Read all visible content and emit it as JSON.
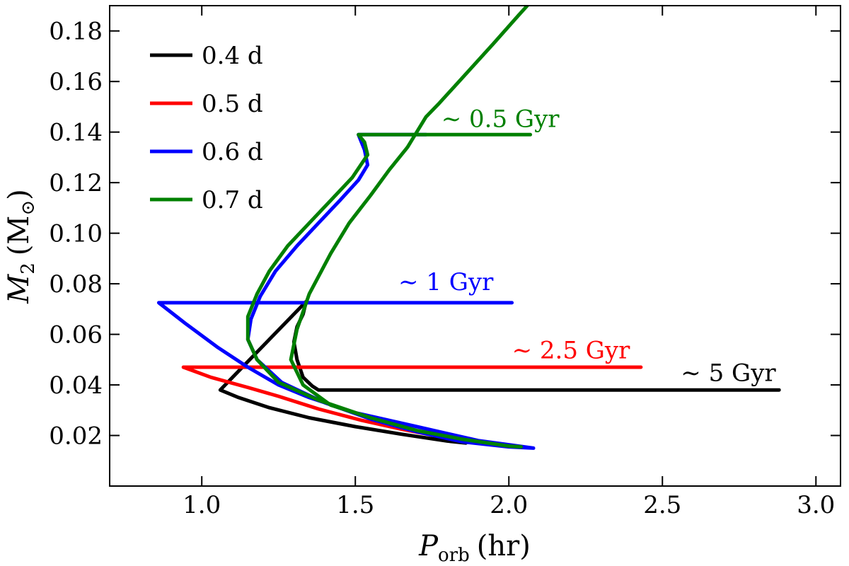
{
  "chart_data": {
    "type": "line",
    "xlabel": {
      "main": "P",
      "sub": "orb",
      "unit": "(hr)"
    },
    "ylabel": {
      "main": "M",
      "sub": "2",
      "unit_open": "(M",
      "unit_sub": "⊙",
      "unit_close": ")"
    },
    "xlim": [
      0.7,
      3.08
    ],
    "ylim": [
      0.0,
      0.19
    ],
    "xticks": [
      1.0,
      1.5,
      2.0,
      2.5,
      3.0
    ],
    "xtick_labels": [
      "1.0",
      "1.5",
      "2.0",
      "2.5",
      "3.0"
    ],
    "yticks": [
      0.02,
      0.04,
      0.06,
      0.08,
      0.1,
      0.12,
      0.14,
      0.16,
      0.18
    ],
    "ytick_labels": [
      "0.02",
      "0.04",
      "0.06",
      "0.08",
      "0.10",
      "0.12",
      "0.14",
      "0.16",
      "0.18"
    ],
    "grid": false,
    "legend_position": "top-left",
    "series": [
      {
        "name": "0.4 d",
        "color": "#000000",
        "points": [
          [
            2.88,
            0.038
          ],
          [
            1.38,
            0.038
          ],
          [
            1.36,
            0.0395
          ],
          [
            1.33,
            0.043
          ],
          [
            1.31,
            0.05
          ],
          [
            1.3,
            0.057
          ],
          [
            1.31,
            0.063
          ],
          [
            1.33,
            0.068
          ],
          [
            1.34,
            0.073
          ],
          [
            1.06,
            0.038
          ],
          [
            1.12,
            0.035
          ],
          [
            1.22,
            0.031
          ],
          [
            1.35,
            0.027
          ],
          [
            1.5,
            0.0235
          ],
          [
            1.65,
            0.0205
          ],
          [
            1.8,
            0.0178
          ],
          [
            1.86,
            0.017
          ]
        ]
      },
      {
        "name": "0.5 d",
        "color": "#ff0000",
        "points": [
          [
            2.43,
            0.047
          ],
          [
            0.94,
            0.047
          ],
          [
            1.03,
            0.043
          ],
          [
            1.15,
            0.039
          ],
          [
            1.25,
            0.0355
          ],
          [
            1.38,
            0.0305
          ],
          [
            1.52,
            0.026
          ],
          [
            1.65,
            0.0225
          ],
          [
            1.8,
            0.019
          ],
          [
            1.86,
            0.0178
          ]
        ]
      },
      {
        "name": "0.6 d",
        "color": "#0000ff",
        "points": [
          [
            2.01,
            0.0725
          ],
          [
            0.86,
            0.0725
          ],
          [
            0.95,
            0.064
          ],
          [
            1.05,
            0.055
          ],
          [
            1.15,
            0.047
          ],
          [
            1.25,
            0.04
          ],
          [
            1.35,
            0.035
          ],
          [
            1.5,
            0.029
          ],
          [
            1.7,
            0.0235
          ],
          [
            1.9,
            0.018
          ],
          [
            2.08,
            0.015
          ],
          [
            2.0,
            0.0155
          ],
          [
            1.85,
            0.0175
          ],
          [
            1.7,
            0.0215
          ],
          [
            1.55,
            0.0265
          ],
          [
            1.4,
            0.033
          ],
          [
            1.26,
            0.041
          ],
          [
            1.18,
            0.05
          ],
          [
            1.15,
            0.058
          ],
          [
            1.16,
            0.066
          ],
          [
            1.19,
            0.075
          ],
          [
            1.24,
            0.085
          ],
          [
            1.31,
            0.095
          ],
          [
            1.38,
            0.104
          ],
          [
            1.45,
            0.113
          ],
          [
            1.51,
            0.121
          ],
          [
            1.54,
            0.127
          ],
          [
            1.53,
            0.133
          ],
          [
            1.51,
            0.139
          ],
          [
            1.73,
            0.139
          ]
        ]
      },
      {
        "name": "0.7 d",
        "color": "#008000",
        "points": [
          [
            2.07,
            0.139
          ],
          [
            1.51,
            0.139
          ],
          [
            1.53,
            0.136
          ],
          [
            1.54,
            0.131
          ],
          [
            1.49,
            0.122
          ],
          [
            1.42,
            0.113
          ],
          [
            1.35,
            0.104
          ],
          [
            1.28,
            0.095
          ],
          [
            1.22,
            0.085
          ],
          [
            1.18,
            0.076
          ],
          [
            1.15,
            0.067
          ],
          [
            1.15,
            0.058
          ],
          [
            1.18,
            0.05
          ],
          [
            1.25,
            0.041
          ],
          [
            1.38,
            0.034
          ],
          [
            1.55,
            0.027
          ],
          [
            1.7,
            0.022
          ],
          [
            1.85,
            0.0185
          ],
          [
            2.0,
            0.0158
          ],
          [
            2.04,
            0.0155
          ],
          [
            2.0,
            0.0158
          ],
          [
            1.85,
            0.0185
          ],
          [
            1.7,
            0.022
          ],
          [
            1.55,
            0.027
          ],
          [
            1.42,
            0.032
          ],
          [
            1.33,
            0.04
          ],
          [
            1.29,
            0.05
          ],
          [
            1.31,
            0.062
          ],
          [
            1.35,
            0.076
          ],
          [
            1.42,
            0.092
          ],
          [
            1.48,
            0.104
          ],
          [
            1.55,
            0.115
          ],
          [
            1.61,
            0.125
          ],
          [
            1.67,
            0.134
          ],
          [
            1.71,
            0.142
          ],
          [
            1.73,
            0.146
          ],
          [
            1.77,
            0.151
          ],
          [
            1.83,
            0.159
          ],
          [
            1.89,
            0.167
          ],
          [
            1.95,
            0.175
          ],
          [
            2.03,
            0.186
          ],
          [
            2.06,
            0.19
          ]
        ]
      }
    ],
    "annotations": [
      {
        "text": "∼ 0.5 Gyr",
        "x": 1.78,
        "y": 0.142,
        "color": "#008000"
      },
      {
        "text": "∼ 1 Gyr",
        "x": 1.64,
        "y": 0.0775,
        "color": "#0000ff"
      },
      {
        "text": "∼ 2.5 Gyr",
        "x": 2.01,
        "y": 0.0505,
        "color": "#ff0000"
      },
      {
        "text": "∼ 5 Gyr",
        "x": 2.56,
        "y": 0.0415,
        "color": "#000000"
      }
    ]
  }
}
